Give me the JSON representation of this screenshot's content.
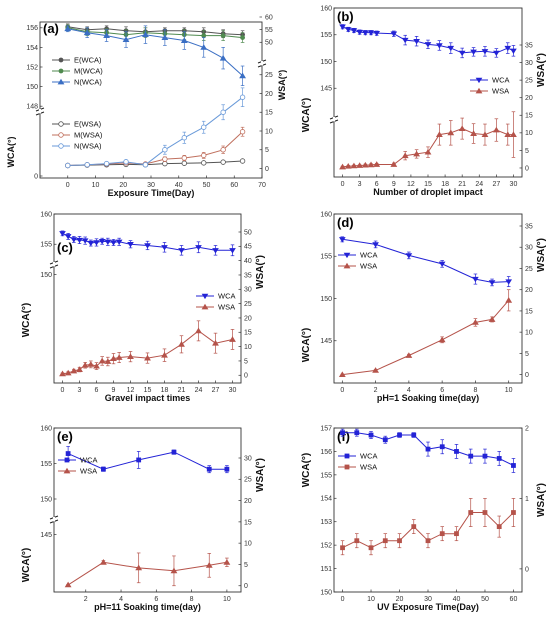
{
  "figure": {
    "colors": {
      "wca_blue": "#2323d6",
      "wsa_red": "#b5534a",
      "e_series": "#555555",
      "m_series": "#4f8a4f",
      "n_series": "#3b6fc4",
      "m_wsa": "#c0705e",
      "n_wsa": "#6a9ad9"
    }
  },
  "chart_data": [
    {
      "id": "a",
      "type": "line",
      "panel_label": "(a)",
      "xlabel": "Exposure Time(Day)",
      "ylabel_left": "WCA(°)",
      "ylabel_right": "WSA(°)",
      "xlim": [
        -10,
        70
      ],
      "x_ticks": [
        0,
        10,
        20,
        30,
        40,
        50,
        60,
        70
      ],
      "y_upper_lim": [
        147,
        157
      ],
      "y_upper_ticks": [
        148,
        150,
        152,
        154,
        156
      ],
      "y_lower_lim": [
        0,
        5
      ],
      "y_lower_ticks": [
        0
      ],
      "y2_lower_lim": [
        -2,
        30
      ],
      "y2_lower_ticks": [
        0,
        5,
        10,
        15,
        20,
        25
      ],
      "y2_upper_lim": [
        43,
        60
      ],
      "y2_upper_ticks": [
        50,
        55,
        60
      ],
      "legend_upper": [
        "E(WCA)",
        "M(WCA)",
        "N(WCA)"
      ],
      "legend_lower": [
        "E(WSA)",
        "M(WSA)",
        "N(WSA)"
      ],
      "x": [
        0,
        7,
        14,
        21,
        28,
        35,
        42,
        49,
        56,
        63
      ],
      "series": [
        {
          "name": "E(WCA)",
          "axis": "left",
          "values": [
            156.1,
            155.8,
            155.9,
            155.7,
            155.6,
            155.7,
            155.7,
            155.6,
            155.4,
            155.3
          ],
          "errors": [
            0.3,
            0.3,
            0.3,
            0.4,
            0.4,
            0.3,
            0.3,
            0.4,
            0.4,
            0.4
          ]
        },
        {
          "name": "M(WCA)",
          "axis": "left",
          "values": [
            156.0,
            155.6,
            155.5,
            155.3,
            155.5,
            155.4,
            155.3,
            155.2,
            155.2,
            155.0
          ],
          "errors": [
            0.3,
            0.4,
            0.4,
            0.5,
            0.5,
            0.4,
            0.5,
            0.5,
            0.5,
            0.5
          ]
        },
        {
          "name": "N(WCA)",
          "axis": "left",
          "values": [
            155.9,
            155.5,
            155.2,
            154.8,
            155.3,
            155.0,
            154.7,
            154.0,
            152.9,
            151.1
          ],
          "errors": [
            0.3,
            0.5,
            0.6,
            0.8,
            0.9,
            0.8,
            0.9,
            1.0,
            1.1,
            1.0
          ]
        },
        {
          "name": "E(WSA)",
          "axis": "right",
          "values": [
            0.8,
            0.9,
            1.0,
            1.1,
            1.0,
            1.3,
            1.4,
            1.5,
            1.7,
            2.0
          ],
          "errors": [
            0.2,
            0.2,
            0.2,
            0.2,
            0.2,
            0.2,
            0.2,
            0.3,
            0.3,
            0.3
          ]
        },
        {
          "name": "M(WSA)",
          "axis": "right",
          "values": [
            0.8,
            1.0,
            1.2,
            1.5,
            1.2,
            2.5,
            2.8,
            3.5,
            5.0,
            9.8
          ],
          "errors": [
            0.2,
            0.3,
            0.3,
            0.4,
            0.4,
            0.6,
            0.7,
            0.8,
            1.0,
            1.2
          ]
        },
        {
          "name": "N(WSA)",
          "axis": "right",
          "values": [
            0.8,
            1.0,
            1.3,
            1.8,
            1.0,
            5.0,
            8.2,
            11.0,
            15.0,
            19.0
          ],
          "errors": [
            0.3,
            0.3,
            0.4,
            0.4,
            0.5,
            1.2,
            1.5,
            1.6,
            2.0,
            2.5
          ]
        }
      ]
    },
    {
      "id": "b",
      "type": "line",
      "panel_label": "(b)",
      "xlabel": "Number of droplet impact",
      "ylabel_left": "WCA(°)",
      "ylabel_right": "WSA(°)",
      "xlim": [
        -1.5,
        31.5
      ],
      "x_ticks": [
        0,
        3,
        6,
        9,
        12,
        15,
        18,
        21,
        24,
        27,
        30
      ],
      "y_upper_lim": [
        140,
        160
      ],
      "y_upper_ticks": [
        145,
        150,
        155,
        160
      ],
      "y2_lim": [
        -2,
        35
      ],
      "y2_ticks": [
        0,
        5,
        10,
        15,
        20,
        25,
        30,
        35
      ],
      "legend": [
        "WCA",
        "WSA"
      ],
      "x": [
        0,
        1,
        2,
        3,
        4,
        5,
        6,
        9,
        11,
        13,
        15,
        17,
        19,
        21,
        23,
        25,
        27,
        29,
        30
      ],
      "series": [
        {
          "name": "WCA",
          "axis": "left",
          "values": [
            156.5,
            156,
            155.8,
            155.5,
            155.4,
            155.4,
            155.3,
            155.2,
            154.0,
            153.8,
            153.2,
            153.0,
            152.5,
            151.6,
            151.8,
            151.9,
            151.6,
            152.5,
            152.0
          ],
          "errors": [
            0.4,
            0.4,
            0.4,
            0.4,
            0.4,
            0.4,
            0.4,
            0.5,
            0.9,
            0.9,
            0.8,
            0.9,
            1.0,
            0.9,
            0.8,
            0.9,
            0.8,
            1.0,
            1.0
          ]
        },
        {
          "name": "WSA",
          "axis": "right",
          "values": [
            0.3,
            0.5,
            0.6,
            0.7,
            0.8,
            0.9,
            1.0,
            1.0,
            3.5,
            4.0,
            4.5,
            9.5,
            10.0,
            11.2,
            9.8,
            9.5,
            10.8,
            9.5,
            9.5
          ],
          "errors": [
            0.2,
            0.2,
            0.2,
            0.2,
            0.3,
            0.3,
            0.3,
            0.4,
            1.2,
            1.2,
            1.5,
            3.0,
            3.5,
            3.0,
            2.8,
            3.0,
            3.2,
            3.0,
            6.5
          ]
        }
      ]
    },
    {
      "id": "c",
      "type": "line",
      "panel_label": "(c)",
      "xlabel": "Gravel impact times",
      "ylabel_left": "WCA(°)",
      "ylabel_right": "WSA(°)",
      "xlim": [
        -1.5,
        31.5
      ],
      "x_ticks": [
        0,
        3,
        6,
        9,
        12,
        15,
        18,
        21,
        24,
        27,
        30
      ],
      "y_upper_lim": [
        140,
        160
      ],
      "y_upper_ticks": [
        150,
        155,
        160
      ],
      "y2_lim": [
        -2,
        50
      ],
      "y2_ticks": [
        0,
        5,
        10,
        15,
        20,
        25,
        30,
        35,
        40,
        45,
        50
      ],
      "legend": [
        "WCA",
        "WSA"
      ],
      "x": [
        0,
        1,
        2,
        3,
        4,
        5,
        6,
        7,
        8,
        9,
        10,
        12,
        15,
        18,
        21,
        24,
        27,
        30
      ],
      "series": [
        {
          "name": "WCA",
          "axis": "left",
          "values": [
            156.8,
            156.3,
            155.8,
            155.7,
            155.6,
            155.2,
            155.3,
            155.5,
            155.4,
            155.3,
            155.4,
            155.0,
            154.8,
            154.5,
            154.0,
            154.5,
            154.0,
            154.0
          ],
          "errors": [
            0.4,
            0.5,
            0.5,
            0.6,
            0.6,
            0.5,
            0.6,
            0.5,
            0.6,
            0.5,
            0.6,
            0.6,
            0.7,
            0.8,
            0.8,
            0.9,
            0.8,
            0.9
          ]
        },
        {
          "name": "WSA",
          "axis": "right",
          "values": [
            0.5,
            0.8,
            1.5,
            2.0,
            3.5,
            3.8,
            3.2,
            5.0,
            4.8,
            5.8,
            6.2,
            6.5,
            6.0,
            7.0,
            10.8,
            15.5,
            11.2,
            12.5
          ],
          "errors": [
            0.3,
            0.4,
            0.6,
            0.8,
            1.0,
            1.2,
            1.2,
            1.5,
            1.5,
            1.8,
            1.8,
            1.8,
            1.8,
            2.2,
            3.0,
            3.5,
            3.5,
            3.5
          ]
        }
      ]
    },
    {
      "id": "d",
      "type": "line",
      "panel_label": "(d)",
      "xlabel": "pH=1 Soaking time(day)",
      "ylabel_left": "WCA(°)",
      "ylabel_right": "WSA(°)",
      "xlim": [
        -0.5,
        10.8
      ],
      "x_ticks": [
        0,
        2,
        4,
        6,
        8,
        10
      ],
      "y_lim": [
        140,
        160
      ],
      "y_ticks": [
        145,
        150,
        155,
        160
      ],
      "y2_lim": [
        -1.5,
        35
      ],
      "y2_ticks": [
        0,
        5,
        10,
        15,
        20,
        25,
        30,
        35
      ],
      "legend": [
        "WCA",
        "WSA"
      ],
      "x": [
        0,
        2,
        4,
        6,
        8,
        9,
        10
      ],
      "series": [
        {
          "name": "WCA",
          "axis": "left",
          "values": [
            157.0,
            156.4,
            155.1,
            154.1,
            152.3,
            151.9,
            152.0
          ],
          "errors": [
            0.3,
            0.4,
            0.4,
            0.4,
            0.6,
            0.4,
            0.6
          ]
        },
        {
          "name": "WSA",
          "axis": "right",
          "values": [
            0.0,
            1.0,
            4.5,
            8.2,
            12.3,
            13.0,
            17.5
          ],
          "errors": [
            0.1,
            0.2,
            0.3,
            0.7,
            0.9,
            0.6,
            2.5
          ]
        }
      ]
    },
    {
      "id": "e",
      "type": "line",
      "panel_label": "(e)",
      "xlabel": "pH=11 Soaking time(day)",
      "ylabel_left": "WCA(°)",
      "ylabel_right": "WSA(°)",
      "xlim": [
        0.2,
        10.8
      ],
      "x_ticks": [
        2,
        4,
        6,
        8,
        10
      ],
      "y_upper_lim": [
        140,
        160
      ],
      "y_upper_ticks": [
        145,
        150,
        155,
        160
      ],
      "y2_lim": [
        -1,
        30
      ],
      "y2_ticks": [
        0,
        5,
        10,
        15,
        20,
        25,
        30
      ],
      "legend": [
        "WCA",
        "WSA"
      ],
      "x": [
        1,
        3,
        5,
        7,
        9,
        10
      ],
      "series": [
        {
          "name": "WCA",
          "axis": "left",
          "values": [
            156.4,
            154.2,
            155.5,
            156.6,
            154.2,
            154.2
          ],
          "errors": [
            1.0,
            0.3,
            1.2,
            0.3,
            0.5,
            0.5
          ]
        },
        {
          "name": "WSA",
          "axis": "right",
          "values": [
            0.2,
            5.5,
            4.2,
            3.5,
            4.8,
            5.5
          ],
          "errors": [
            0.1,
            0.4,
            3.5,
            3.5,
            2.8,
            1.0
          ]
        }
      ]
    },
    {
      "id": "f",
      "type": "line",
      "panel_label": "(f)",
      "xlabel": "UV Exposure Time(Day)",
      "ylabel_left": "WCA(°)",
      "ylabel_right": "WSA(°)",
      "xlim": [
        -3,
        63
      ],
      "x_ticks": [
        0,
        10,
        20,
        30,
        40,
        50,
        60
      ],
      "y_upper_lim": [
        150,
        157
      ],
      "y_upper_ticks": [
        150,
        151,
        152,
        153,
        154,
        155,
        156,
        157
      ],
      "y2_lim": [
        -0.3,
        2
      ],
      "y2_ticks": [
        0,
        1,
        2
      ],
      "legend": [
        "WCA",
        "WSA"
      ],
      "x": [
        0,
        5,
        10,
        15,
        20,
        25,
        30,
        35,
        40,
        45,
        50,
        55,
        60
      ],
      "series": [
        {
          "name": "WCA",
          "axis": "left",
          "values": [
            156.8,
            156.8,
            156.7,
            156.5,
            156.7,
            156.7,
            156.1,
            156.2,
            156.0,
            155.8,
            155.8,
            155.7,
            155.4
          ],
          "errors": [
            0.15,
            0.15,
            0.15,
            0.15,
            0.1,
            0.1,
            0.3,
            0.3,
            0.3,
            0.3,
            0.3,
            0.3,
            0.3
          ]
        },
        {
          "name": "WSA",
          "axis": "right",
          "values": [
            0.3,
            0.4,
            0.3,
            0.4,
            0.4,
            0.6,
            0.4,
            0.5,
            0.5,
            0.8,
            0.8,
            0.6,
            0.8
          ],
          "errors": [
            0.1,
            0.1,
            0.1,
            0.1,
            0.1,
            0.1,
            0.1,
            0.1,
            0.1,
            0.2,
            0.2,
            0.15,
            0.2
          ]
        }
      ]
    }
  ]
}
